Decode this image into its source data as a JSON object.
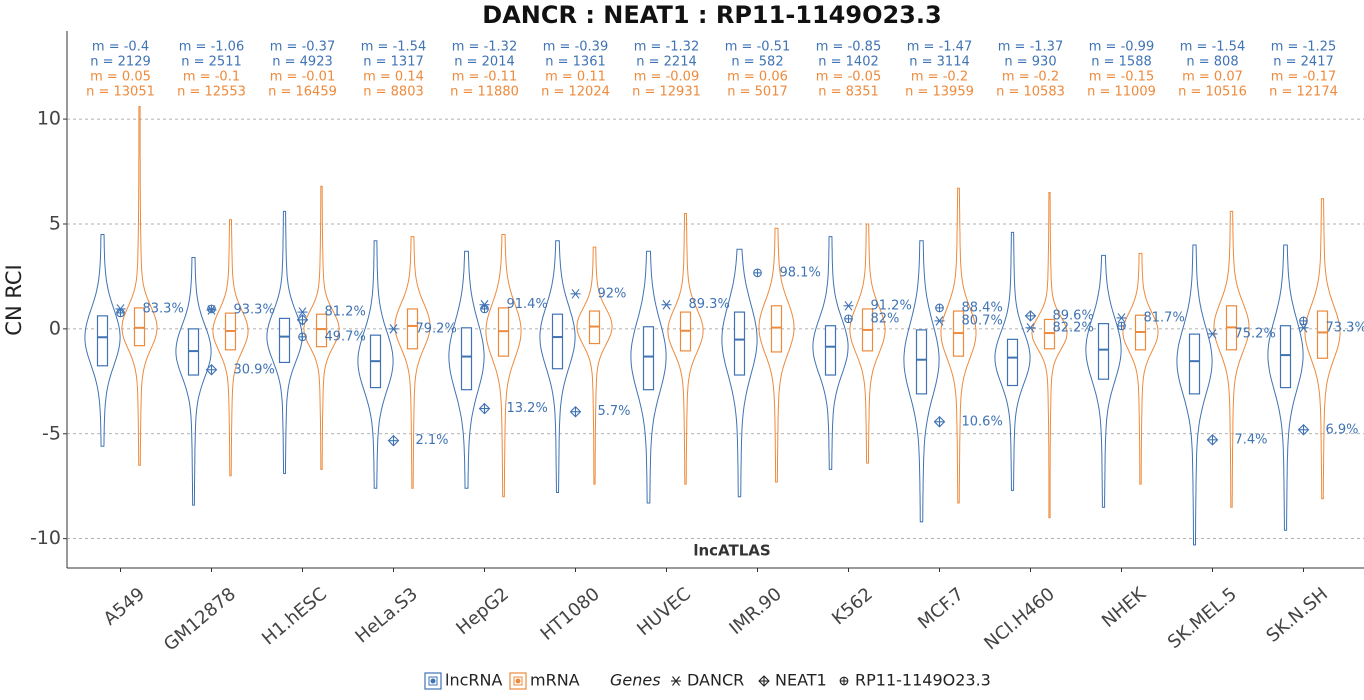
{
  "chart_data": {
    "type": "violin",
    "title": "DANCR : NEAT1 : RP11-1149O23.3",
    "ylabel": "CN RCI",
    "annotation": "lncATLAS",
    "categories": [
      "A549",
      "GM12878",
      "H1.hESC",
      "HeLa.S3",
      "HepG2",
      "HT1080",
      "HUVEC",
      "IMR.90",
      "K562",
      "MCF.7",
      "NCI.H460",
      "NHEK",
      "SK.MEL.5",
      "SK.N.SH"
    ],
    "ylim": [
      -11.4,
      14.2
    ],
    "yticks": [
      -10,
      -5,
      0,
      5,
      10
    ],
    "grid": true,
    "series": [
      {
        "name": "lncRNA",
        "color": "#3f73b4",
        "medians": [
          -0.4,
          -1.06,
          -0.37,
          -1.54,
          -1.32,
          -0.39,
          -1.32,
          -0.51,
          -0.85,
          -1.47,
          -1.37,
          -0.99,
          -1.54,
          -1.25
        ],
        "median_labels": [
          "m = -0.4",
          "m = -1.06",
          "m = -0.37",
          "m = -1.54",
          "m = -1.32",
          "m = -0.39",
          "m = -1.32",
          "m = -0.51",
          "m = -0.85",
          "m = -1.47",
          "m = -1.37",
          "m = -0.99",
          "m = -1.54",
          "m = -1.25"
        ],
        "counts": [
          2129,
          2511,
          4923,
          1317,
          2014,
          1361,
          2214,
          582,
          1402,
          3114,
          930,
          1588,
          808,
          2417
        ],
        "count_labels": [
          "n = 2129",
          "n = 2511",
          "n = 4923",
          "n = 1317",
          "n = 2014",
          "n = 1361",
          "n = 2214",
          "n = 582",
          "n = 1402",
          "n = 3114",
          "n = 930",
          "n = 1588",
          "n = 808",
          "n = 2417"
        ],
        "q1": [
          -1.76,
          -2.2,
          -1.6,
          -2.8,
          -2.9,
          -1.9,
          -2.9,
          -2.2,
          -2.2,
          -3.1,
          -2.7,
          -2.4,
          -3.1,
          -2.8
        ],
        "q3": [
          0.62,
          0.0,
          0.5,
          -0.3,
          0.05,
          0.7,
          0.1,
          0.8,
          0.15,
          -0.05,
          -0.5,
          0.25,
          -0.25,
          0.15
        ],
        "min": [
          -5.6,
          -8.4,
          -6.9,
          -7.6,
          -7.6,
          -7.8,
          -8.3,
          -8.0,
          -6.7,
          -9.2,
          -7.7,
          -8.5,
          -10.3,
          -9.6
        ],
        "max": [
          4.5,
          3.4,
          5.6,
          4.2,
          3.7,
          4.2,
          3.7,
          3.8,
          4.4,
          4.2,
          4.6,
          3.5,
          4.0,
          4.0
        ]
      },
      {
        "name": "mRNA",
        "color": "#ee8a3c",
        "medians": [
          0.05,
          -0.1,
          -0.01,
          0.14,
          -0.11,
          0.11,
          -0.09,
          0.06,
          -0.05,
          -0.2,
          -0.2,
          -0.15,
          0.07,
          -0.17
        ],
        "median_labels": [
          "m = 0.05",
          "m = -0.1",
          "m = -0.01",
          "m = 0.14",
          "m = -0.11",
          "m = 0.11",
          "m = -0.09",
          "m = 0.06",
          "m = -0.05",
          "m = -0.2",
          "m = -0.2",
          "m = -0.15",
          "m = 0.07",
          "m = -0.17"
        ],
        "counts": [
          13051,
          12553,
          16459,
          8803,
          11880,
          12024,
          12931,
          5017,
          8351,
          13959,
          10583,
          11009,
          10516,
          12174
        ],
        "count_labels": [
          "n = 13051",
          "n = 12553",
          "n = 16459",
          "n = 8803",
          "n = 11880",
          "n = 12024",
          "n = 12931",
          "n = 5017",
          "n = 8351",
          "n = 13959",
          "n = 10583",
          "n = 11009",
          "n = 10516",
          "n = 12174"
        ],
        "q1": [
          -0.8,
          -1.0,
          -0.85,
          -0.95,
          -1.3,
          -0.7,
          -1.05,
          -1.1,
          -1.05,
          -1.3,
          -0.95,
          -1.0,
          -1.0,
          -1.4
        ],
        "q3": [
          1.0,
          0.75,
          0.7,
          0.95,
          1.0,
          0.85,
          0.8,
          1.1,
          0.95,
          0.85,
          0.45,
          0.65,
          1.1,
          0.85
        ],
        "min": [
          -6.5,
          -7.0,
          -6.7,
          -7.6,
          -8.0,
          -7.4,
          -7.4,
          -7.3,
          -6.4,
          -8.3,
          -9.0,
          -7.4,
          -8.5,
          -8.1
        ],
        "max": [
          10.6,
          5.2,
          6.8,
          4.4,
          4.5,
          3.9,
          5.5,
          4.8,
          5.0,
          6.7,
          6.5,
          3.6,
          5.6,
          6.2
        ]
      }
    ],
    "genes_title": "Genes",
    "gene_color": "#3f73b4",
    "genes": [
      {
        "name": "DANCR",
        "marker": "asterisk",
        "values": [
          0.95,
          0.9,
          0.8,
          0.0,
          1.15,
          1.67,
          1.15,
          null,
          1.1,
          0.38,
          0.05,
          0.52,
          -0.24,
          0.05
        ],
        "labels": [
          "83.3%",
          "93.3%",
          "81.2%",
          "79.2%",
          "91.4%",
          "92%",
          "89.3%",
          null,
          "91.2%",
          "80.7%",
          "82.2%",
          "81.7%",
          "75.2%",
          "73.3%"
        ]
      },
      {
        "name": "NEAT1",
        "marker": "diamond-plus",
        "values": [
          null,
          -1.95,
          0.43,
          -5.33,
          -3.8,
          -3.95,
          null,
          null,
          null,
          -4.43,
          0.62,
          null,
          -5.29,
          -4.81
        ],
        "labels": [
          null,
          "30.9%",
          null,
          "2.1%",
          "13.2%",
          "5.7%",
          null,
          null,
          null,
          "10.6%",
          "89.6%",
          null,
          "7.4%",
          "6.9%"
        ]
      },
      {
        "name": "RP11-1149O23.3",
        "marker": "circle-plus",
        "values": [
          0.76,
          0.95,
          -0.38,
          null,
          0.95,
          null,
          null,
          2.67,
          0.48,
          1.0,
          null,
          0.14,
          null,
          0.38
        ],
        "labels": [
          null,
          null,
          "49.7%",
          null,
          null,
          null,
          null,
          "98.1%",
          "82%",
          "88.4%",
          null,
          null,
          null,
          null
        ]
      }
    ]
  }
}
